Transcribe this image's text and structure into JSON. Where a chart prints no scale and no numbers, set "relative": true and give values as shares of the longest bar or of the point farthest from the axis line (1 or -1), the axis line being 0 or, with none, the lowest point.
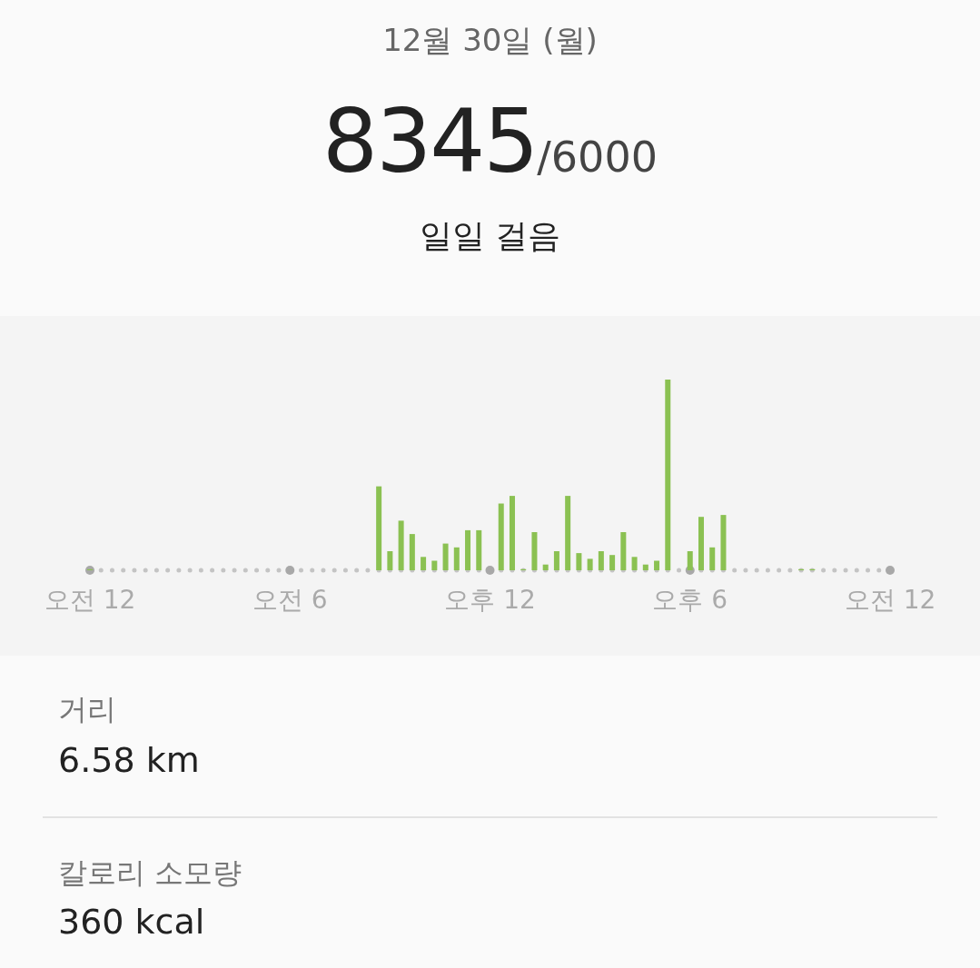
{
  "chart_data": {
    "type": "bar",
    "title": "12월 30일 (월)",
    "annotations": [
      "8345",
      "/6000",
      "일일 걸음",
      "거리",
      "6.58 km",
      "칼로리 소모량",
      "360 kcal"
    ],
    "categories": [
      "오전 12",
      null,
      null,
      null,
      null,
      null,
      null,
      null,
      null,
      null,
      null,
      null,
      null,
      null,
      null,
      null,
      null,
      null,
      "오전 6",
      null,
      null,
      null,
      null,
      null,
      null,
      null,
      null,
      null,
      null,
      null,
      null,
      null,
      null,
      null,
      null,
      null,
      "오후 12",
      null,
      null,
      null,
      null,
      null,
      null,
      null,
      null,
      null,
      null,
      null,
      null,
      null,
      null,
      null,
      null,
      null,
      "오후 6",
      null,
      null,
      null,
      null,
      null,
      null,
      null,
      null,
      null,
      null,
      null,
      null,
      null,
      null,
      null,
      null,
      null,
      "오전 12"
    ],
    "values": [
      0.005,
      null,
      null,
      null,
      null,
      null,
      null,
      null,
      null,
      null,
      null,
      null,
      null,
      null,
      null,
      null,
      null,
      null,
      null,
      null,
      null,
      null,
      null,
      null,
      null,
      null,
      0.44,
      0.1,
      0.26,
      0.19,
      0.07,
      0.05,
      0.14,
      0.12,
      0.21,
      0.21,
      null,
      0.35,
      0.39,
      0.005,
      0.2,
      0.03,
      0.1,
      0.39,
      0.09,
      0.06,
      0.1,
      0.08,
      0.2,
      0.07,
      0.03,
      0.05,
      1.0,
      null,
      0.1,
      0.28,
      0.12,
      0.29,
      null,
      null,
      null,
      null,
      null,
      null,
      0.005,
      0.005,
      null,
      null,
      null,
      null,
      null,
      null,
      null
    ],
    "color": "#8bc152",
    "relative": true
  }
}
